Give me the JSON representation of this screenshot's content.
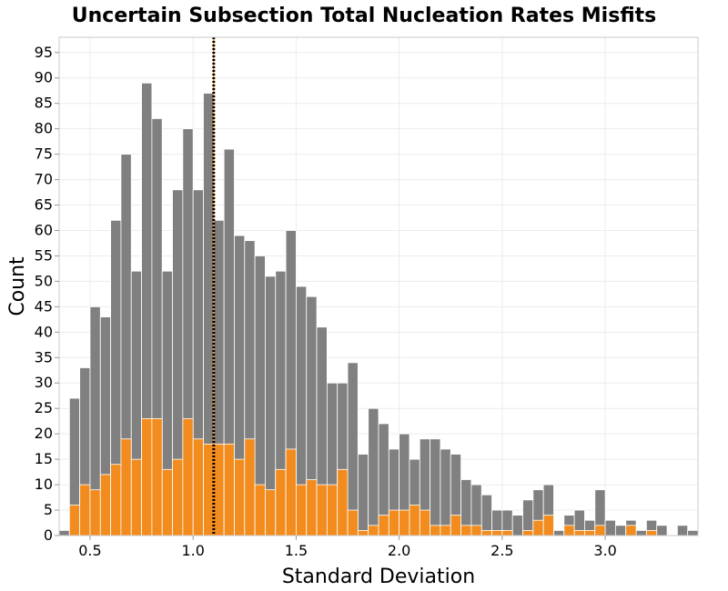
{
  "chart_data": {
    "type": "bar",
    "title": "Uncertain Subsection Total Nucleation Rates Misfits",
    "xlabel": "Standard Deviation",
    "ylabel": "Count",
    "xlim": [
      0.35,
      3.45
    ],
    "ylim": [
      0,
      98
    ],
    "bin_width": 0.05,
    "x_ticks": [
      "0.5",
      "1.0",
      "1.5",
      "2.0",
      "2.5",
      "3.0"
    ],
    "y_ticks": [
      "0",
      "5",
      "10",
      "15",
      "20",
      "25",
      "30",
      "35",
      "40",
      "45",
      "50",
      "55",
      "60",
      "65",
      "70",
      "75",
      "80",
      "85",
      "90",
      "95"
    ],
    "grid": true,
    "reference_line": {
      "x": 1.1,
      "style": "dotted",
      "colors": [
        "#000000",
        "#f28c1e"
      ]
    },
    "series": [
      {
        "color": "#808080",
        "bin_centers": [
          0.375,
          0.425,
          0.475,
          0.525,
          0.575,
          0.625,
          0.675,
          0.725,
          0.775,
          0.825,
          0.875,
          0.925,
          0.975,
          1.025,
          1.075,
          1.125,
          1.175,
          1.225,
          1.275,
          1.325,
          1.375,
          1.425,
          1.475,
          1.525,
          1.575,
          1.625,
          1.675,
          1.725,
          1.775,
          1.825,
          1.875,
          1.925,
          1.975,
          2.025,
          2.075,
          2.125,
          2.175,
          2.225,
          2.275,
          2.325,
          2.375,
          2.425,
          2.475,
          2.525,
          2.575,
          2.625,
          2.675,
          2.725,
          2.775,
          2.825,
          2.875,
          2.925,
          2.975,
          3.025,
          3.075,
          3.125,
          3.175,
          3.225,
          3.275,
          3.325,
          3.375,
          3.425
        ],
        "values": [
          1,
          27,
          33,
          45,
          43,
          62,
          75,
          52,
          89,
          82,
          52,
          68,
          80,
          68,
          87,
          62,
          76,
          59,
          58,
          55,
          51,
          52,
          60,
          49,
          47,
          41,
          30,
          30,
          34,
          16,
          25,
          22,
          17,
          20,
          15,
          19,
          19,
          17,
          16,
          11,
          10,
          8,
          5,
          5,
          4,
          7,
          9,
          10,
          1,
          4,
          5,
          3,
          9,
          3,
          2,
          3,
          1,
          3,
          2,
          0,
          2,
          1
        ]
      },
      {
        "color": "#f28c1e",
        "bin_centers": [
          0.375,
          0.425,
          0.475,
          0.525,
          0.575,
          0.625,
          0.675,
          0.725,
          0.775,
          0.825,
          0.875,
          0.925,
          0.975,
          1.025,
          1.075,
          1.125,
          1.175,
          1.225,
          1.275,
          1.325,
          1.375,
          1.425,
          1.475,
          1.525,
          1.575,
          1.625,
          1.675,
          1.725,
          1.775,
          1.825,
          1.875,
          1.925,
          1.975,
          2.025,
          2.075,
          2.125,
          2.175,
          2.225,
          2.275,
          2.325,
          2.375,
          2.425,
          2.475,
          2.525,
          2.575,
          2.625,
          2.675,
          2.725,
          2.775,
          2.825,
          2.875,
          2.925,
          2.975,
          3.025,
          3.075,
          3.125,
          3.175,
          3.225,
          3.275,
          3.325,
          3.375,
          3.425
        ],
        "values": [
          0,
          6,
          10,
          9,
          12,
          14,
          19,
          15,
          23,
          23,
          13,
          15,
          23,
          19,
          18,
          18,
          18,
          15,
          19,
          10,
          9,
          13,
          17,
          10,
          11,
          10,
          10,
          13,
          5,
          1,
          2,
          4,
          5,
          5,
          6,
          5,
          2,
          2,
          4,
          2,
          2,
          1,
          1,
          1,
          0,
          1,
          3,
          4,
          0,
          2,
          1,
          1,
          2,
          0,
          0,
          2,
          0,
          1,
          0,
          0,
          0,
          0
        ]
      }
    ]
  }
}
